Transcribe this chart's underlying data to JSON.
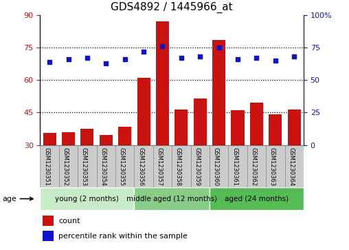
{
  "title": "GDS4892 / 1445966_at",
  "samples": [
    "GSM1230351",
    "GSM1230352",
    "GSM1230353",
    "GSM1230354",
    "GSM1230355",
    "GSM1230356",
    "GSM1230357",
    "GSM1230358",
    "GSM1230359",
    "GSM1230360",
    "GSM1230361",
    "GSM1230362",
    "GSM1230363",
    "GSM1230364"
  ],
  "counts": [
    35.5,
    36.0,
    37.5,
    34.5,
    38.5,
    61.0,
    87.0,
    46.5,
    51.5,
    78.5,
    46.0,
    49.5,
    44.0,
    46.5
  ],
  "percentiles": [
    64,
    66,
    67,
    63,
    66,
    72,
    76,
    67,
    68,
    75,
    66,
    67,
    65,
    68
  ],
  "bar_color": "#cc1111",
  "dot_color": "#1111cc",
  "ylim_left": [
    30,
    90
  ],
  "ylim_right": [
    0,
    100
  ],
  "yticks_left": [
    30,
    45,
    60,
    75,
    90
  ],
  "yticks_right": [
    0,
    25,
    50,
    75,
    100
  ],
  "ytick_labels_right": [
    "0",
    "25",
    "50",
    "75",
    "100%"
  ],
  "groups": [
    {
      "label": "young (2 months)",
      "start": 0,
      "end": 5
    },
    {
      "label": "middle aged (12 months)",
      "start": 5,
      "end": 9
    },
    {
      "label": "aged (24 months)",
      "start": 9,
      "end": 14
    }
  ],
  "group_colors": [
    "#c8ecc8",
    "#88cc88",
    "#55bb55"
  ],
  "age_label": "age",
  "legend_count_label": "count",
  "legend_pct_label": "percentile rank within the sample",
  "title_fontsize": 11,
  "tick_fontsize": 8,
  "sample_box_color": "#cccccc",
  "sample_box_edge": "#888888"
}
